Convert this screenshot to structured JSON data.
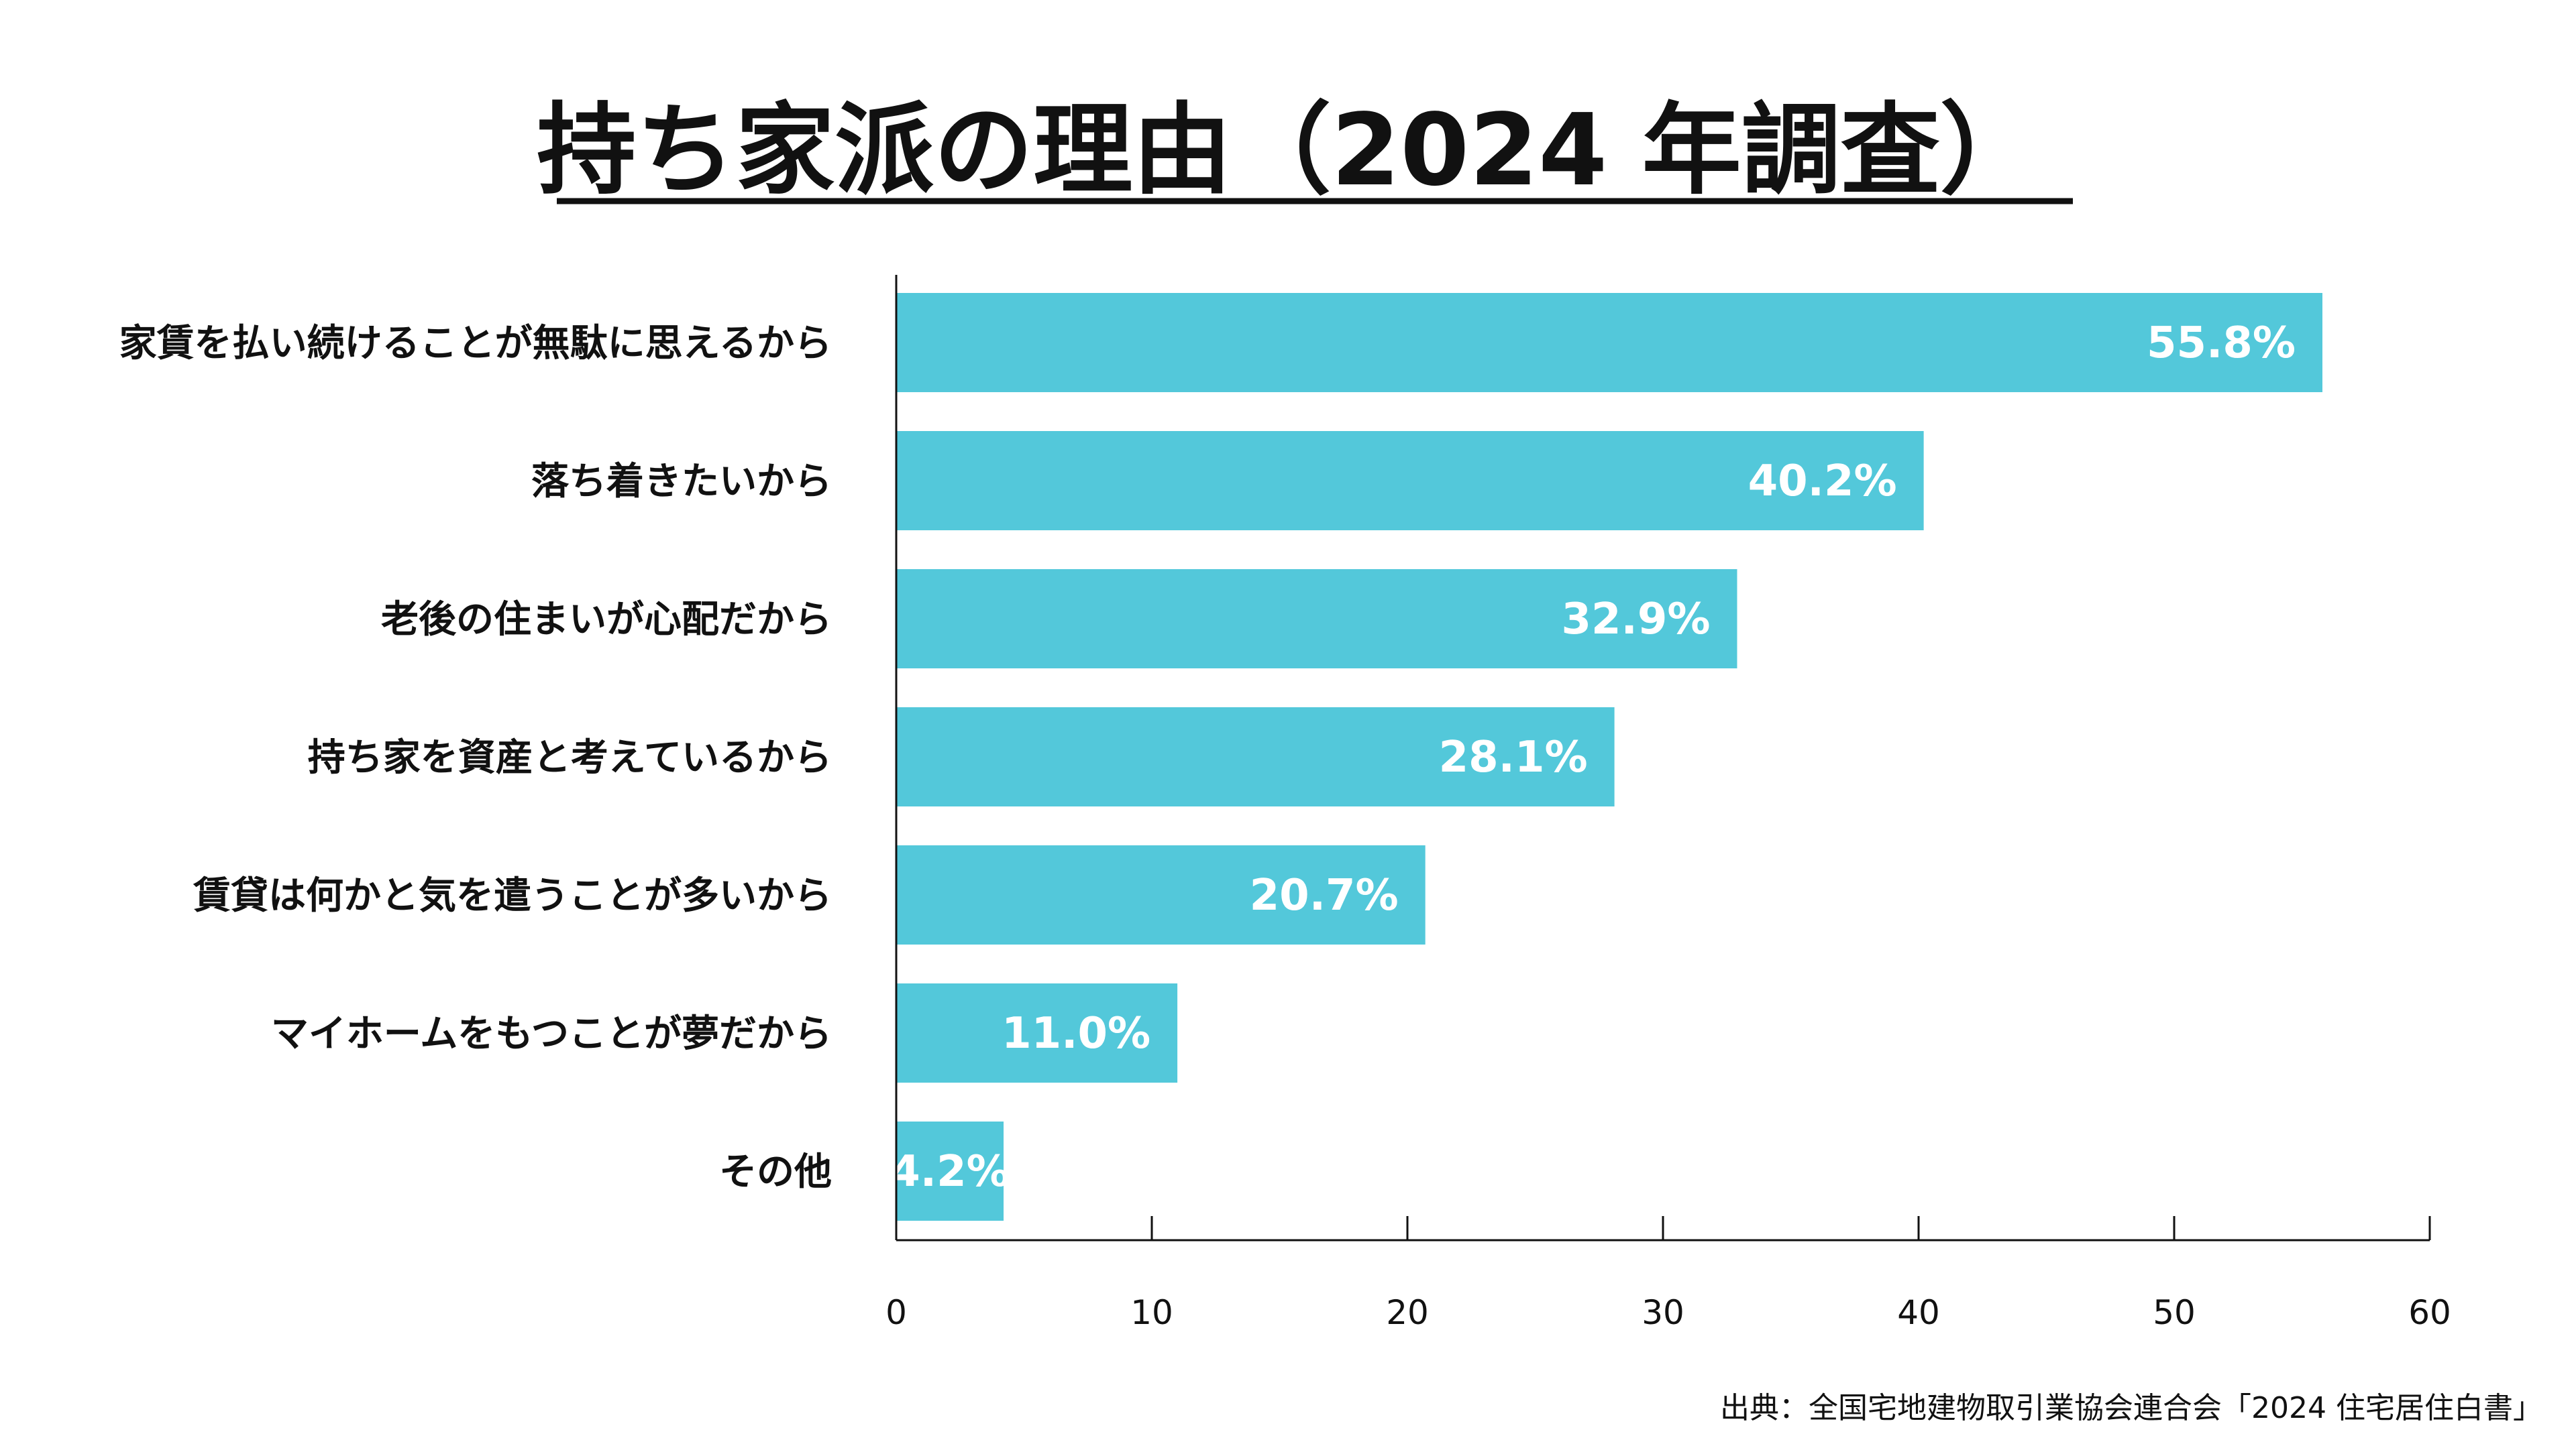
{
  "chart_data": {
    "type": "bar",
    "orientation": "horizontal",
    "title": "持ち家派の理由（2024 年調査）",
    "categories": [
      "家賃を払い続けることが無駄に思えるから",
      "落ち着きたいから",
      "老後の住まいが心配だから",
      "持ち家を資産と考えているから",
      "賃貸は何かと気を遣うことが多いから",
      "マイホームをもつことが夢だから",
      "その他"
    ],
    "values": [
      55.8,
      40.2,
      32.9,
      28.1,
      20.7,
      11.0,
      4.2
    ],
    "value_labels": [
      "55.8%",
      "40.2%",
      "32.9%",
      "28.1%",
      "20.7%",
      "11.0%",
      "4.2%"
    ],
    "xlim": [
      0,
      60
    ],
    "xticks": [
      "0",
      "10",
      "20",
      "30",
      "40",
      "50",
      "60"
    ],
    "xlabel": "",
    "ylabel": "",
    "grid": false,
    "bar_color": "#53c8da",
    "source": "出典：全国宅地建物取引業協会連合会「2024 住宅居住白書」"
  }
}
